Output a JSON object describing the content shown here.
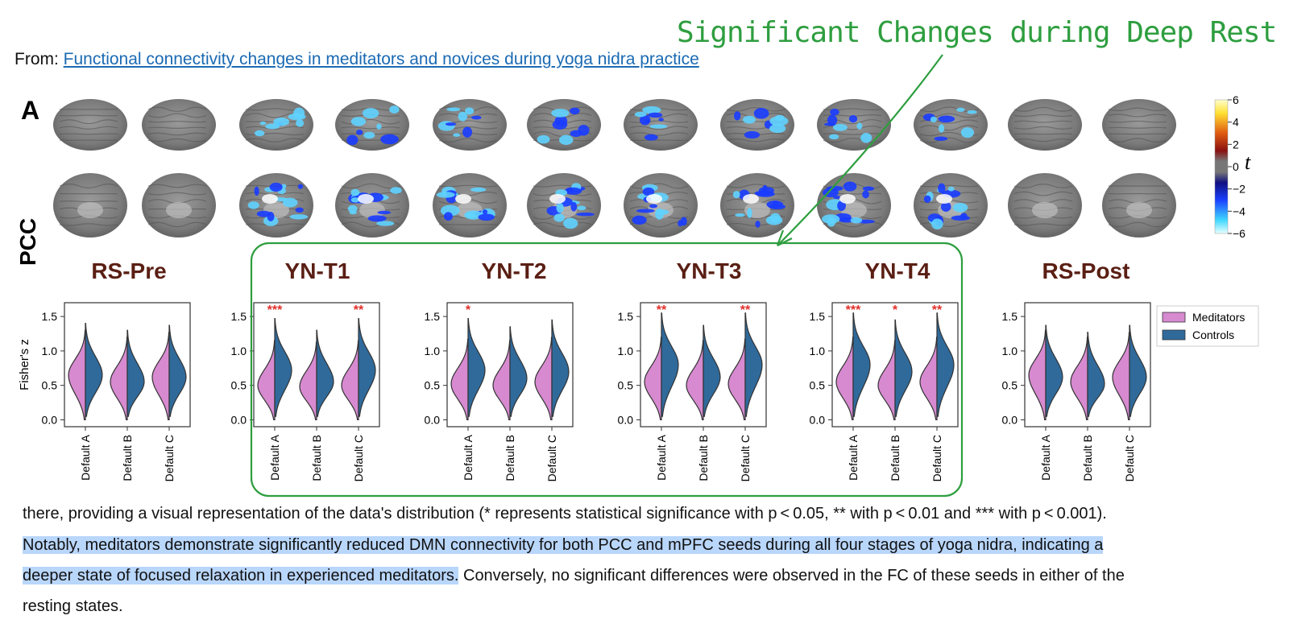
{
  "source": {
    "prefix": "From: ",
    "link_text": "Functional connectivity changes in meditators and novices during yoga nidra practice"
  },
  "annotation": {
    "text": "Significant Changes during Deep Rest",
    "color": "#2e9e3f"
  },
  "figure": {
    "panel_label": "A",
    "seed_label": "PCC",
    "colorbar": {
      "label": "t",
      "ticks": [
        "6",
        "4",
        "2",
        "0",
        "−2",
        "−4",
        "−6"
      ]
    },
    "stages": [
      "RS-Pre",
      "YN-T1",
      "YN-T2",
      "YN-T3",
      "YN-T4",
      "RS-Post"
    ],
    "title_color": "#5a1f14",
    "group_colors": {
      "Meditators": "#d78ad0",
      "Controls": "#2f6a9b"
    },
    "significance_color": "#e0302a"
  },
  "chart_data": {
    "type": "violin",
    "ylabel": "Fisher's z",
    "ylim": [
      -0.1,
      1.7
    ],
    "yticks": [
      "0.0",
      "0.5",
      "1.0",
      "1.5"
    ],
    "categories": [
      "Default A",
      "Default B",
      "Default C"
    ],
    "legend": [
      "Meditators",
      "Controls"
    ],
    "legend_position": "right",
    "panels": [
      {
        "stage": "RS-Pre",
        "significance": [
          "",
          "",
          ""
        ],
        "series": [
          {
            "name": "Meditators",
            "median": [
              0.65,
              0.55,
              0.62
            ]
          },
          {
            "name": "Controls",
            "median": [
              0.65,
              0.55,
              0.62
            ]
          }
        ]
      },
      {
        "stage": "YN-T1",
        "significance": [
          "***",
          "",
          "**"
        ],
        "series": [
          {
            "name": "Meditators",
            "median": [
              0.5,
              0.48,
              0.5
            ]
          },
          {
            "name": "Controls",
            "median": [
              0.72,
              0.55,
              0.72
            ]
          }
        ]
      },
      {
        "stage": "YN-T2",
        "significance": [
          "*",
          "",
          ""
        ],
        "series": [
          {
            "name": "Meditators",
            "median": [
              0.52,
              0.5,
              0.55
            ]
          },
          {
            "name": "Controls",
            "median": [
              0.72,
              0.6,
              0.7
            ]
          }
        ]
      },
      {
        "stage": "YN-T3",
        "significance": [
          "**",
          "",
          "**"
        ],
        "series": [
          {
            "name": "Meditators",
            "median": [
              0.55,
              0.5,
              0.52
            ]
          },
          {
            "name": "Controls",
            "median": [
              0.8,
              0.62,
              0.8
            ]
          }
        ]
      },
      {
        "stage": "YN-T4",
        "significance": [
          "***",
          "*",
          "**"
        ],
        "series": [
          {
            "name": "Meditators",
            "median": [
              0.55,
              0.5,
              0.55
            ]
          },
          {
            "name": "Controls",
            "median": [
              0.8,
              0.7,
              0.8
            ]
          }
        ]
      },
      {
        "stage": "RS-Post",
        "significance": [
          "",
          "",
          ""
        ],
        "series": [
          {
            "name": "Meditators",
            "median": [
              0.65,
              0.55,
              0.62
            ]
          },
          {
            "name": "Controls",
            "median": [
              0.62,
              0.52,
              0.62
            ]
          }
        ]
      }
    ]
  },
  "text": {
    "line1": "there, providing a visual representation of the data's distribution (* represents statistical significance with p < 0.05, ** with p < 0.01 and *** with p < 0.001).",
    "line2": "Notably, meditators demonstrate significantly reduced DMN connectivity for both PCC and mPFC seeds during all four stages of yoga nidra, indicating a",
    "line3_highlight": "deeper state of focused relaxation in experienced meditators.",
    "line3_rest": " Conversely, no significant differences were observed in the FC of these seeds in either of the",
    "line4": "resting states."
  }
}
